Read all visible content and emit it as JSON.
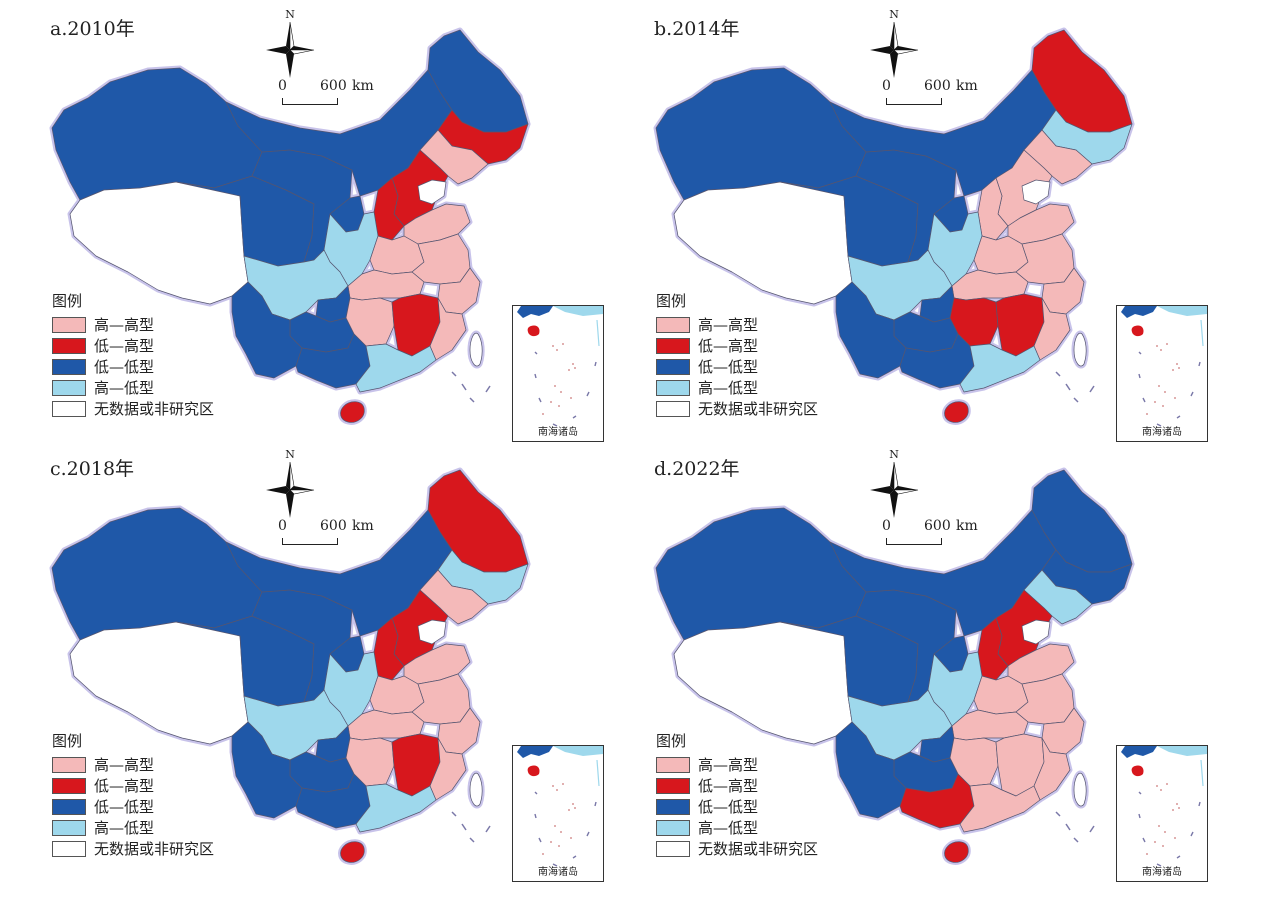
{
  "colors": {
    "high_high": "#f4b9b9",
    "low_high": "#d7171d",
    "low_low": "#1f58a8",
    "high_low": "#9ed8ec",
    "no_data": "#ffffff",
    "boundary_glow": "#c8c3ea"
  },
  "north_label": "N",
  "scale": {
    "zero": "0",
    "distance": "600",
    "unit": "km"
  },
  "legend": {
    "title": "图例",
    "items": [
      {
        "label": "高—高型",
        "color": "#f4b9b9"
      },
      {
        "label": "低—高型",
        "color": "#d7171d"
      },
      {
        "label": "低—低型",
        "color": "#1f58a8"
      },
      {
        "label": "高—低型",
        "color": "#9ed8ec"
      },
      {
        "label": "无数据或非研究区",
        "color": "#ffffff"
      }
    ]
  },
  "inset_label": "南海诸岛",
  "panels": [
    {
      "title": "a.2010年",
      "regions": {
        "heilongjiang": "low_low",
        "jilin": "low_high",
        "liaoning": "high_high",
        "inner_mongolia": "low_low",
        "xinjiang": "low_low",
        "tibet": "no_data",
        "qinghai": "low_low",
        "gansu": "low_low",
        "ningxia": "low_low",
        "shaanxi": "high_low",
        "shanxi": "low_high",
        "hebei": "low_high",
        "beijing_tianjin": "no_data",
        "shandong": "high_high",
        "henan": "high_high",
        "jiangsu_anhui": "high_high",
        "shanghai_zhejiang": "high_high",
        "hubei": "high_high",
        "hunan": "high_high",
        "jiangxi": "low_high",
        "fujian": "high_high",
        "sichuan": "high_low",
        "chongqing": "low_low",
        "guizhou": "low_low",
        "yunnan": "low_low",
        "guangxi": "low_low",
        "guangdong": "high_low",
        "hainan": "low_high",
        "taiwan": "no_data"
      }
    },
    {
      "title": "b.2014年",
      "regions": {
        "heilongjiang": "low_high",
        "jilin": "high_low",
        "liaoning": "high_high",
        "inner_mongolia": "low_low",
        "xinjiang": "low_low",
        "tibet": "no_data",
        "qinghai": "low_low",
        "gansu": "low_low",
        "ningxia": "low_low",
        "shaanxi": "high_low",
        "shanxi": "high_high",
        "hebei": "high_high",
        "beijing_tianjin": "no_data",
        "shandong": "high_high",
        "henan": "high_high",
        "jiangsu_anhui": "high_high",
        "shanghai_zhejiang": "high_high",
        "hubei": "high_high",
        "hunan": "low_high",
        "jiangxi": "low_high",
        "fujian": "high_high",
        "sichuan": "high_low",
        "chongqing": "low_low",
        "guizhou": "low_low",
        "yunnan": "low_low",
        "guangxi": "low_low",
        "guangdong": "high_low",
        "hainan": "low_high",
        "taiwan": "no_data"
      }
    },
    {
      "title": "c.2018年",
      "regions": {
        "heilongjiang": "low_high",
        "jilin": "high_low",
        "liaoning": "high_high",
        "inner_mongolia": "low_low",
        "xinjiang": "low_low",
        "tibet": "no_data",
        "qinghai": "low_low",
        "gansu": "low_low",
        "ningxia": "low_low",
        "shaanxi": "high_low",
        "shanxi": "low_high",
        "hebei": "low_high",
        "beijing_tianjin": "no_data",
        "shandong": "high_high",
        "henan": "high_high",
        "jiangsu_anhui": "high_high",
        "shanghai_zhejiang": "high_high",
        "hubei": "high_high",
        "hunan": "high_high",
        "jiangxi": "low_high",
        "fujian": "high_high",
        "sichuan": "high_low",
        "chongqing": "low_low",
        "guizhou": "low_low",
        "yunnan": "low_low",
        "guangxi": "low_low",
        "guangdong": "high_low",
        "hainan": "low_high",
        "taiwan": "no_data"
      }
    },
    {
      "title": "d.2022年",
      "regions": {
        "heilongjiang": "low_low",
        "jilin": "low_low",
        "liaoning": "high_low",
        "inner_mongolia": "low_low",
        "xinjiang": "low_low",
        "tibet": "no_data",
        "qinghai": "low_low",
        "gansu": "low_low",
        "ningxia": "low_low",
        "shaanxi": "high_low",
        "shanxi": "low_high",
        "hebei": "low_high",
        "beijing_tianjin": "no_data",
        "shandong": "high_high",
        "henan": "high_high",
        "jiangsu_anhui": "high_high",
        "shanghai_zhejiang": "high_high",
        "hubei": "high_high",
        "hunan": "high_high",
        "jiangxi": "high_high",
        "fujian": "high_high",
        "sichuan": "high_low",
        "chongqing": "low_low",
        "guizhou": "low_low",
        "yunnan": "low_low",
        "guangxi": "low_high",
        "guangdong": "high_high",
        "hainan": "low_high",
        "taiwan": "no_data"
      }
    }
  ]
}
